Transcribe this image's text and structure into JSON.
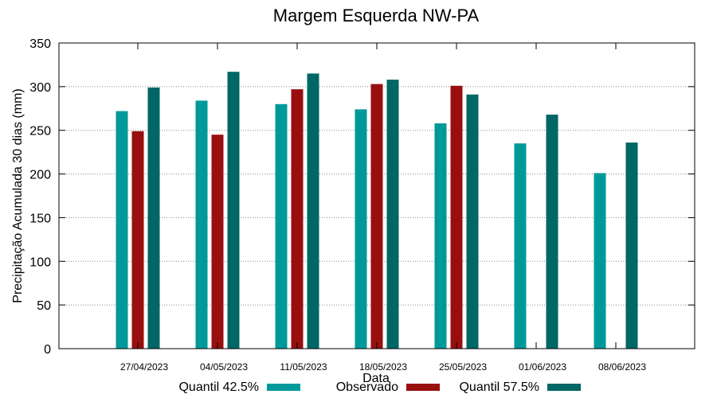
{
  "chart_data": {
    "type": "bar",
    "title": "Margem Esquerda NW-PA",
    "xlabel": "Data",
    "ylabel": "Precipitação Acumulada 30 dias (mm)",
    "ylim": [
      0,
      350
    ],
    "yticks": [
      0,
      50,
      100,
      150,
      200,
      250,
      300,
      350
    ],
    "grid": true,
    "legend_position": "bottom",
    "categories": [
      "27/04/2023",
      "04/05/2023",
      "11/05/2023",
      "18/05/2023",
      "25/05/2023",
      "01/06/2023",
      "08/06/2023"
    ],
    "series": [
      {
        "name": "Quantil 42.5%",
        "color": "#009999",
        "values": [
          272,
          284,
          280,
          274,
          258,
          235,
          201
        ]
      },
      {
        "name": "Observado",
        "color": "#990f0f",
        "values": [
          249,
          245,
          297,
          303,
          301,
          null,
          null
        ]
      },
      {
        "name": "Quantil 57.5%",
        "color": "#006666",
        "values": [
          299,
          317,
          315,
          308,
          291,
          268,
          236
        ]
      }
    ]
  }
}
